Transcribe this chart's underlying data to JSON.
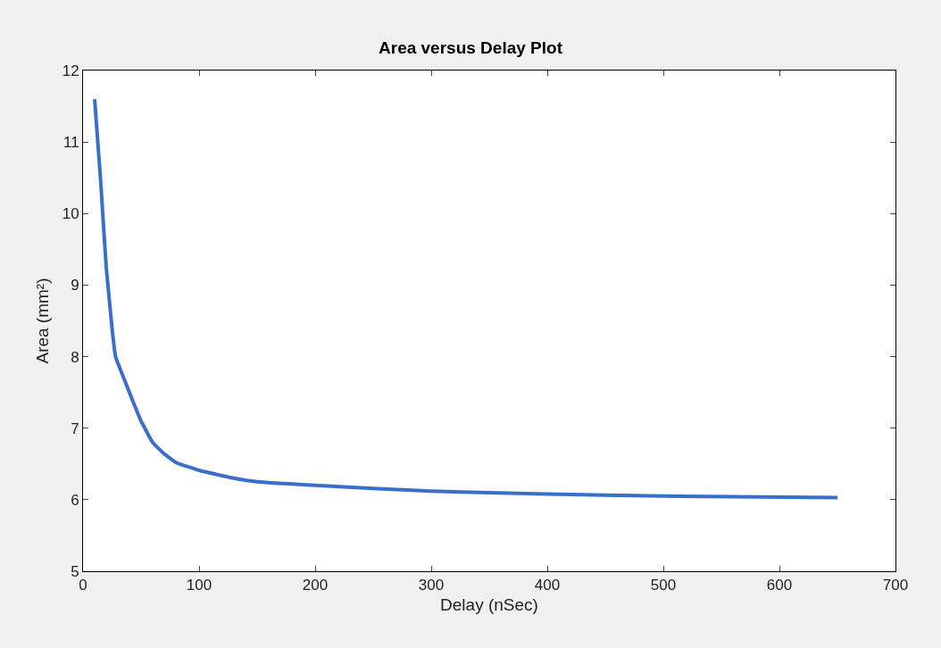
{
  "chart_data": {
    "type": "line",
    "title": "Area versus Delay Plot",
    "xlabel": "Delay (nSec)",
    "ylabel": "Area (mm²)",
    "x": [
      10,
      15,
      20,
      25,
      28,
      40,
      50,
      60,
      70,
      80,
      100,
      130,
      150,
      200,
      300,
      400,
      500,
      650
    ],
    "series": [
      {
        "color": "#3a6fc9",
        "values": [
          11.6,
          10.5,
          9.25,
          8.4,
          8.0,
          7.5,
          7.1,
          6.8,
          6.64,
          6.52,
          6.41,
          6.3,
          6.25,
          6.2,
          6.12,
          6.08,
          6.05,
          6.03
        ]
      }
    ],
    "xlim": [
      0,
      700
    ],
    "xticks": [
      0,
      100,
      200,
      300,
      400,
      500,
      600,
      700
    ],
    "ylim": [
      5,
      12
    ],
    "yticks": [
      5,
      6,
      7,
      8,
      9,
      10,
      11,
      12
    ],
    "legend": false,
    "marker": "none",
    "line_style": "solid"
  }
}
